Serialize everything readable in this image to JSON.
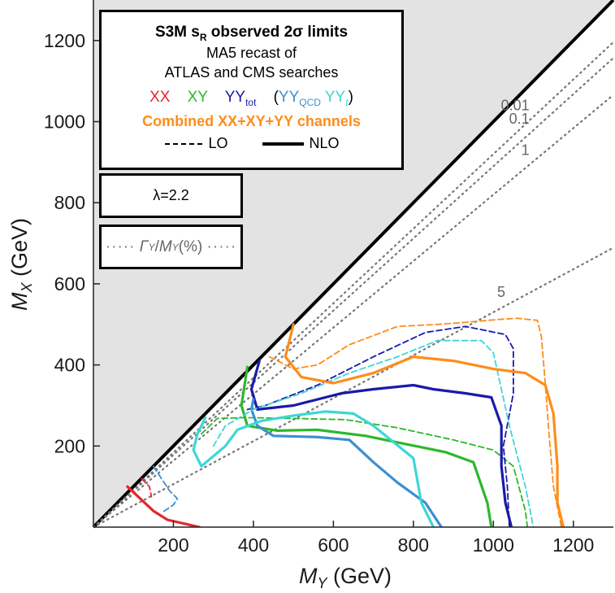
{
  "chart_data": {
    "type": "line",
    "xlabel": "M_Y (GeV)",
    "ylabel": "M_X (GeV)",
    "xlim": [
      0,
      1300
    ],
    "ylim": [
      0,
      1300
    ],
    "xticks": [
      "200",
      "400",
      "600",
      "800",
      "1000",
      "1200"
    ],
    "yticks": [
      "200",
      "400",
      "600",
      "800",
      "1000",
      "1200"
    ],
    "excluded_region": "M_X < M_Y (grey)",
    "grid": false,
    "legend": {
      "title_main": "S3M s",
      "title_sub": "R",
      "title_rest": " observed 2σ limits",
      "line2": "MA5 recast of",
      "line3": "ATLAS and CMS searches",
      "xx": "XX",
      "xy": "XY",
      "yy": "YY",
      "yy_sub": "tot",
      "paren_open": "(",
      "yyqcd": "YY",
      "yyqcd_sub": "QCD",
      "yyt": "YY",
      "yyt_sub": "t",
      "paren_close": ")",
      "combined": "Combined XX+XY+YY channels",
      "lo": "LO",
      "nlo": "NLO",
      "lambda": "λ=2.2",
      "width_label": "Γ_Y/M_Y (%)",
      "width_sym": "Γ",
      "width_symsub": "Y",
      "width_slash": "/",
      "width_m": "M",
      "width_msub": "Y",
      "width_unit": " (%)"
    },
    "width_contours": [
      {
        "label": "0.01",
        "slope": 0.92
      },
      {
        "label": "0.1",
        "slope": 0.89
      },
      {
        "label": "1",
        "slope": 0.82
      },
      {
        "label": "5",
        "slope": 0.53
      }
    ],
    "colors": {
      "XX": "#e8252a",
      "XY": "#2cb82c",
      "YY_tot": "#1a1aa8",
      "YY_QCD": "#3b8fd1",
      "YY_t": "#3fd6d6",
      "Combined": "#ff8c1a"
    },
    "series": [
      {
        "name": "XX",
        "order": "NLO",
        "color": "#e8252a",
        "points": [
          [
            85,
            100
          ],
          [
            150,
            40
          ],
          [
            185,
            18
          ],
          [
            265,
            0
          ]
        ]
      },
      {
        "name": "XX",
        "order": "LO",
        "color": "#e8252a",
        "points": [
          [
            120,
            120
          ],
          [
            140,
            100
          ],
          [
            145,
            75
          ]
        ]
      },
      {
        "name": "XY",
        "order": "NLO",
        "color": "#2cb82c",
        "points": [
          [
            385,
            395
          ],
          [
            370,
            300
          ],
          [
            385,
            250
          ],
          [
            460,
            238
          ],
          [
            560,
            240
          ],
          [
            680,
            225
          ],
          [
            880,
            185
          ],
          [
            950,
            160
          ],
          [
            985,
            60
          ],
          [
            995,
            0
          ]
        ]
      },
      {
        "name": "XY",
        "order": "LO",
        "color": "#2cb82c",
        "points": [
          [
            270,
            230
          ],
          [
            310,
            268
          ],
          [
            380,
            270
          ],
          [
            500,
            268
          ],
          [
            630,
            265
          ],
          [
            760,
            245
          ],
          [
            900,
            215
          ],
          [
            1000,
            190
          ],
          [
            1050,
            150
          ],
          [
            1080,
            40
          ],
          [
            1085,
            0
          ]
        ]
      },
      {
        "name": "YY_tot",
        "order": "NLO",
        "color": "#1a1aa8",
        "points": [
          [
            415,
            410
          ],
          [
            395,
            340
          ],
          [
            410,
            290
          ],
          [
            500,
            300
          ],
          [
            620,
            330
          ],
          [
            700,
            340
          ],
          [
            800,
            350
          ],
          [
            850,
            340
          ],
          [
            930,
            330
          ],
          [
            995,
            320
          ],
          [
            1020,
            250
          ],
          [
            1020,
            150
          ],
          [
            1030,
            60
          ],
          [
            1045,
            0
          ]
        ]
      },
      {
        "name": "YY_tot",
        "order": "LO",
        "color": "#1a1aa8",
        "points": [
          [
            385,
            290
          ],
          [
            430,
            300
          ],
          [
            560,
            350
          ],
          [
            700,
            420
          ],
          [
            830,
            480
          ],
          [
            930,
            495
          ],
          [
            1030,
            475
          ],
          [
            1050,
            440
          ],
          [
            1050,
            330
          ],
          [
            1025,
            200
          ],
          [
            1035,
            100
          ],
          [
            1040,
            0
          ]
        ]
      },
      {
        "name": "YY_QCD",
        "order": "NLO",
        "color": "#3b8fd1",
        "points": [
          [
            400,
            315
          ],
          [
            395,
            290
          ],
          [
            410,
            250
          ],
          [
            450,
            225
          ],
          [
            560,
            222
          ],
          [
            640,
            215
          ],
          [
            700,
            160
          ],
          [
            760,
            110
          ],
          [
            830,
            60
          ],
          [
            870,
            0
          ]
        ]
      },
      {
        "name": "YY_QCD",
        "order": "LO",
        "color": "#3b8fd1",
        "points": [
          [
            150,
            150
          ],
          [
            170,
            120
          ],
          [
            190,
            90
          ],
          [
            210,
            70
          ],
          [
            200,
            55
          ],
          [
            170,
            35
          ]
        ]
      },
      {
        "name": "YY_t",
        "order": "NLO",
        "color": "#3fd6d6",
        "points": [
          [
            280,
            270
          ],
          [
            260,
            230
          ],
          [
            250,
            190
          ],
          [
            270,
            150
          ],
          [
            330,
            200
          ],
          [
            360,
            240
          ],
          [
            420,
            262
          ],
          [
            500,
            275
          ],
          [
            580,
            285
          ],
          [
            650,
            280
          ],
          [
            700,
            250
          ],
          [
            800,
            170
          ],
          [
            820,
            60
          ],
          [
            850,
            0
          ]
        ]
      },
      {
        "name": "YY_t",
        "order": "LO",
        "color": "#3fd6d6",
        "points": [
          [
            300,
            200
          ],
          [
            330,
            250
          ],
          [
            400,
            290
          ],
          [
            520,
            330
          ],
          [
            640,
            380
          ],
          [
            760,
            420
          ],
          [
            860,
            460
          ],
          [
            970,
            460
          ],
          [
            1000,
            430
          ],
          [
            1040,
            250
          ],
          [
            1080,
            100
          ],
          [
            1100,
            0
          ]
        ]
      },
      {
        "name": "Combined",
        "order": "NLO",
        "color": "#ff8c1a",
        "points": [
          [
            500,
            500
          ],
          [
            480,
            420
          ],
          [
            520,
            370
          ],
          [
            600,
            355
          ],
          [
            700,
            380
          ],
          [
            800,
            420
          ],
          [
            900,
            410
          ],
          [
            1000,
            390
          ],
          [
            1080,
            380
          ],
          [
            1130,
            350
          ],
          [
            1150,
            280
          ],
          [
            1160,
            150
          ],
          [
            1160,
            60
          ],
          [
            1175,
            0
          ]
        ]
      },
      {
        "name": "Combined",
        "order": "LO",
        "color": "#ff8c1a",
        "points": [
          [
            440,
            420
          ],
          [
            500,
            390
          ],
          [
            560,
            400
          ],
          [
            640,
            450
          ],
          [
            760,
            495
          ],
          [
            860,
            500
          ],
          [
            930,
            505
          ],
          [
            1010,
            512
          ],
          [
            1060,
            515
          ],
          [
            1110,
            510
          ],
          [
            1120,
            470
          ],
          [
            1130,
            350
          ],
          [
            1140,
            220
          ],
          [
            1150,
            100
          ],
          [
            1170,
            0
          ]
        ]
      }
    ]
  }
}
